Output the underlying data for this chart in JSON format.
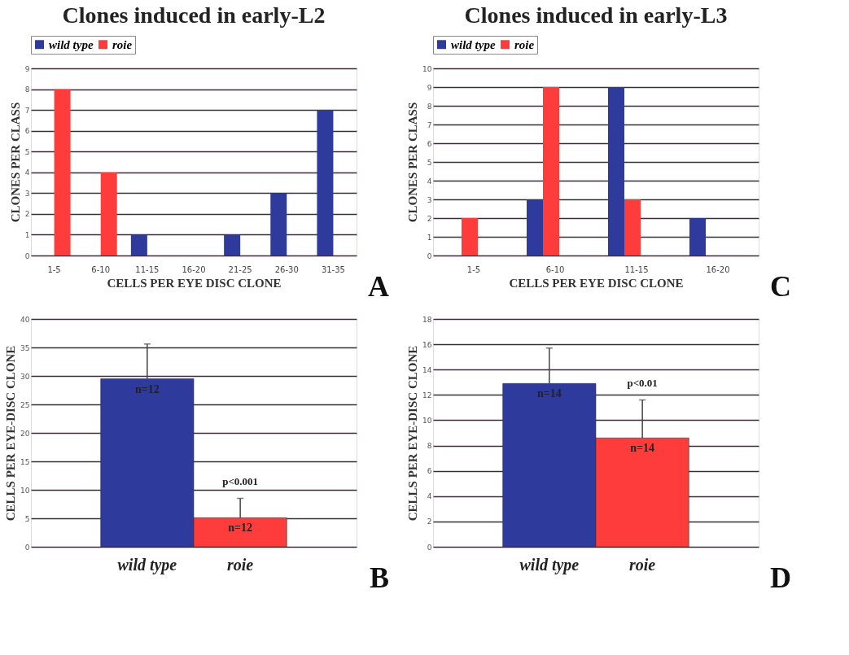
{
  "chart_data": [
    {
      "type": "bar",
      "title": "Clones induced in early-L2",
      "categories": [
        "1-5",
        "6-10",
        "11-15",
        "16-20",
        "21-25",
        "26-30",
        "31-35"
      ],
      "xlabel": "CELLS PER EYE DISC CLONE",
      "ylabel": "CLONES PER CLASS",
      "series": [
        {
          "name": "wild type",
          "color": "#2e3a9c",
          "values": [
            0,
            0,
            1,
            0,
            1,
            3,
            7
          ]
        },
        {
          "name": "roie",
          "color": "#ff3c3c",
          "values": [
            8,
            4,
            0,
            0,
            0,
            0,
            0
          ]
        }
      ],
      "ylim": [
        0,
        9
      ],
      "yticks": [
        0,
        1,
        2,
        3,
        4,
        5,
        6,
        7,
        8,
        9
      ],
      "grid": "y",
      "legend": "top",
      "annotations": [
        "A"
      ]
    },
    {
      "type": "bar",
      "categories": [
        "wild type",
        "roie"
      ],
      "ylabel": "CELLS PER EYE-DISC CLONE",
      "values": [
        29.5,
        5.1
      ],
      "colors": [
        "#2e3a9c",
        "#ff3c3c"
      ],
      "errors": [
        [
          29.5,
          35.6
        ],
        [
          5.1,
          8.5
        ]
      ],
      "ylim": [
        0,
        40
      ],
      "yticks": [
        0,
        5,
        10,
        15,
        20,
        25,
        30,
        35,
        40
      ],
      "grid": "y",
      "annotations": [
        {
          "text": "n=12",
          "x": "wild type",
          "y": 29.5
        },
        {
          "text": "n=12",
          "x": "roie",
          "y": 5.1
        },
        {
          "text": "p<0.001",
          "x": "roie",
          "y": 8.5
        },
        "B"
      ]
    },
    {
      "type": "bar",
      "title": "Clones induced in early-L3",
      "categories": [
        "1-5",
        "6-10",
        "11-15",
        "16-20"
      ],
      "xlabel": "CELLS PER EYE DISC CLONE",
      "ylabel": "CLONES PER CLASS",
      "series": [
        {
          "name": "wild type",
          "color": "#2e3a9c",
          "values": [
            0,
            3,
            9,
            2
          ]
        },
        {
          "name": "roie",
          "color": "#ff3c3c",
          "values": [
            2,
            9,
            3,
            0
          ]
        }
      ],
      "ylim": [
        0,
        10
      ],
      "yticks": [
        0,
        1,
        2,
        3,
        4,
        5,
        6,
        7,
        8,
        9,
        10
      ],
      "grid": "y",
      "legend": "top",
      "annotations": [
        "C"
      ]
    },
    {
      "type": "bar",
      "categories": [
        "wild type",
        "roie"
      ],
      "ylabel": "CELLS PER EYE-DISC CLONE",
      "values": [
        12.9,
        8.6
      ],
      "colors": [
        "#2e3a9c",
        "#ff3c3c"
      ],
      "errors": [
        [
          12.9,
          15.7
        ],
        [
          8.6,
          11.6
        ]
      ],
      "ylim": [
        0,
        18
      ],
      "yticks": [
        0,
        2,
        4,
        6,
        8,
        10,
        12,
        14,
        16,
        18
      ],
      "grid": "y",
      "annotations": [
        {
          "text": "n=14",
          "x": "wild type",
          "y": 12.9
        },
        {
          "text": "n=14",
          "x": "roie",
          "y": 8.6
        },
        {
          "text": "p<0.01",
          "x": "roie",
          "y": 11.6
        },
        "D"
      ]
    }
  ]
}
